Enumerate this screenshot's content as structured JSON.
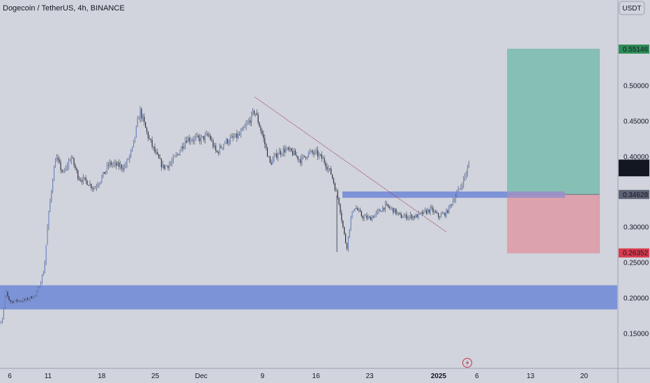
{
  "header": {
    "title": "Dogecoin / TetherUS, 4h, BINANCE",
    "currency_button": "USDT",
    "lightning_icon": "lightning-icon"
  },
  "colors": {
    "background": "#d1d4dc",
    "candle": "#5d6374",
    "zone": "#7d93d8",
    "target": "#86c0b4",
    "stop": "#dca2ae",
    "trendline": "#a03a50",
    "label_green": "#2e8b57",
    "label_red": "#d83b4b",
    "label_dark": "#131722",
    "label_gray": "#5d6374"
  },
  "chart_data": {
    "type": "candlestick",
    "title": "Dogecoin / TetherUS, 4h, BINANCE",
    "currency": "USDT",
    "y_ticks": [
      "0.50000",
      "0.45000",
      "0.40000",
      "0.30000",
      "0.25000",
      "0.20000",
      "0.15000"
    ],
    "x_ticks": [
      "6",
      "11",
      "18",
      "25",
      "Dec",
      "9",
      "16",
      "23",
      "2025",
      "6",
      "13",
      "20"
    ],
    "ylim": [
      0.105,
      0.6
    ],
    "grid": false,
    "price_path": [
      {
        "x": "Nov 4",
        "y": 0.155
      },
      {
        "x": "Nov 5",
        "y": 0.167
      },
      {
        "x": "Nov 5.5",
        "y": 0.21
      },
      {
        "x": "Nov 6",
        "y": 0.195
      },
      {
        "x": "Nov 8",
        "y": 0.197
      },
      {
        "x": "Nov 9.5",
        "y": 0.205
      },
      {
        "x": "Nov 10.5",
        "y": 0.24
      },
      {
        "x": "Nov 11",
        "y": 0.31
      },
      {
        "x": "Nov 11.5",
        "y": 0.36
      },
      {
        "x": "Nov 12",
        "y": 0.4
      },
      {
        "x": "Nov 13",
        "y": 0.375
      },
      {
        "x": "Nov 14",
        "y": 0.4
      },
      {
        "x": "Nov 15",
        "y": 0.37
      },
      {
        "x": "Nov 16",
        "y": 0.365
      },
      {
        "x": "Nov 17",
        "y": 0.355
      },
      {
        "x": "Nov 18",
        "y": 0.37
      },
      {
        "x": "Nov 19",
        "y": 0.39
      },
      {
        "x": "Nov 21",
        "y": 0.385
      },
      {
        "x": "Nov 22",
        "y": 0.41
      },
      {
        "x": "Nov 23",
        "y": 0.465
      },
      {
        "x": "Nov 24",
        "y": 0.43
      },
      {
        "x": "Nov 25",
        "y": 0.405
      },
      {
        "x": "Nov 26",
        "y": 0.385
      },
      {
        "x": "Nov 27",
        "y": 0.39
      },
      {
        "x": "Nov 28",
        "y": 0.405
      },
      {
        "x": "Nov 29",
        "y": 0.425
      },
      {
        "x": "Dec 1",
        "y": 0.425
      },
      {
        "x": "Dec 2",
        "y": 0.43
      },
      {
        "x": "Dec 3",
        "y": 0.405
      },
      {
        "x": "Dec 4",
        "y": 0.42
      },
      {
        "x": "Dec 5",
        "y": 0.425
      },
      {
        "x": "Dec 6",
        "y": 0.43
      },
      {
        "x": "Dec 7",
        "y": 0.445
      },
      {
        "x": "Dec 8",
        "y": 0.465
      },
      {
        "x": "Dec 9",
        "y": 0.43
      },
      {
        "x": "Dec 10",
        "y": 0.39
      },
      {
        "x": "Dec 11",
        "y": 0.405
      },
      {
        "x": "Dec 12",
        "y": 0.41
      },
      {
        "x": "Dec 13",
        "y": 0.405
      },
      {
        "x": "Dec 14",
        "y": 0.395
      },
      {
        "x": "Dec 15",
        "y": 0.405
      },
      {
        "x": "Dec 16",
        "y": 0.405
      },
      {
        "x": "Dec 17",
        "y": 0.395
      },
      {
        "x": "Dec 18",
        "y": 0.375
      },
      {
        "x": "Dec 19",
        "y": 0.335
      },
      {
        "x": "Dec 19.5",
        "y": 0.3
      },
      {
        "x": "Dec 20",
        "y": 0.27
      },
      {
        "x": "Dec 20.5",
        "y": 0.31
      },
      {
        "x": "Dec 21",
        "y": 0.33
      },
      {
        "x": "Dec 22",
        "y": 0.315
      },
      {
        "x": "Dec 23",
        "y": 0.312
      },
      {
        "x": "Dec 24",
        "y": 0.32
      },
      {
        "x": "Dec 25",
        "y": 0.33
      },
      {
        "x": "Dec 26",
        "y": 0.325
      },
      {
        "x": "Dec 27",
        "y": 0.315
      },
      {
        "x": "Dec 28",
        "y": 0.315
      },
      {
        "x": "Dec 29",
        "y": 0.315
      },
      {
        "x": "Dec 30",
        "y": 0.32
      },
      {
        "x": "Dec 31",
        "y": 0.325
      },
      {
        "x": "Jan 1",
        "y": 0.315
      },
      {
        "x": "Jan 2",
        "y": 0.32
      },
      {
        "x": "Jan 3",
        "y": 0.34
      },
      {
        "x": "Jan 4",
        "y": 0.36
      },
      {
        "x": "Jan 5",
        "y": 0.389
      }
    ],
    "zones": [
      {
        "name": "upper-support-zone",
        "y_low": 0.3415,
        "y_high": 0.3505,
        "x_start": "Nov 18 (approx)",
        "x_end": "Jan 19"
      },
      {
        "name": "lower-support-zone",
        "y_low": 0.184,
        "y_high": 0.218,
        "x_start": "Nov 4",
        "x_end": "right edge"
      }
    ],
    "trendline": {
      "from": {
        "x": "Dec 8",
        "y": 0.484
      },
      "to": {
        "x": "Jan 2",
        "y": 0.293
      }
    },
    "position": {
      "entry": "0.34628",
      "target": "0.55146",
      "stop": "0.26352",
      "x_start": "Jan 10",
      "x_end": "Jan 22"
    },
    "price_labels": [
      {
        "value": "0.55146",
        "kind": "target"
      },
      {
        "value": "0.38940",
        "sub": "53:24",
        "kind": "current"
      },
      {
        "value": "0.34628",
        "kind": "entry"
      },
      {
        "value": "0.26352",
        "kind": "stop"
      }
    ]
  }
}
